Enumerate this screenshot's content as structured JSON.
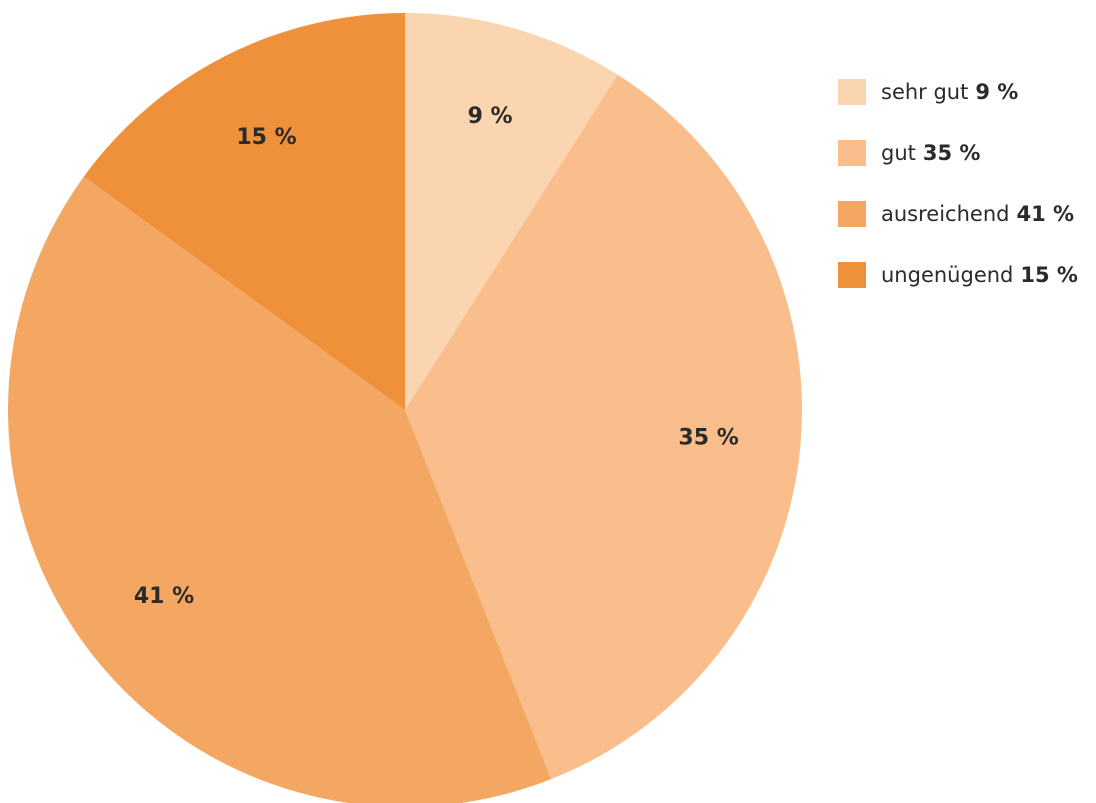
{
  "chart_data": {
    "type": "pie",
    "title": "",
    "slices": [
      {
        "label": "sehr gut",
        "value": 9,
        "value_label": "9 %",
        "legend_value": "9 %",
        "color": "#FBD4B0"
      },
      {
        "label": "gut",
        "value": 35,
        "value_label": "35 %",
        "legend_value": "35 %",
        "color": "#F9BE8C"
      },
      {
        "label": "ausreichend",
        "value": 41,
        "value_label": "41 %",
        "legend_value": "41 %",
        "color": "#F4A763"
      },
      {
        "label": "ungenügend",
        "value": 15,
        "value_label": "15 %",
        "legend_value": "15 %",
        "color": "#EF903B"
      }
    ],
    "legend": {
      "position": "top-right"
    }
  }
}
